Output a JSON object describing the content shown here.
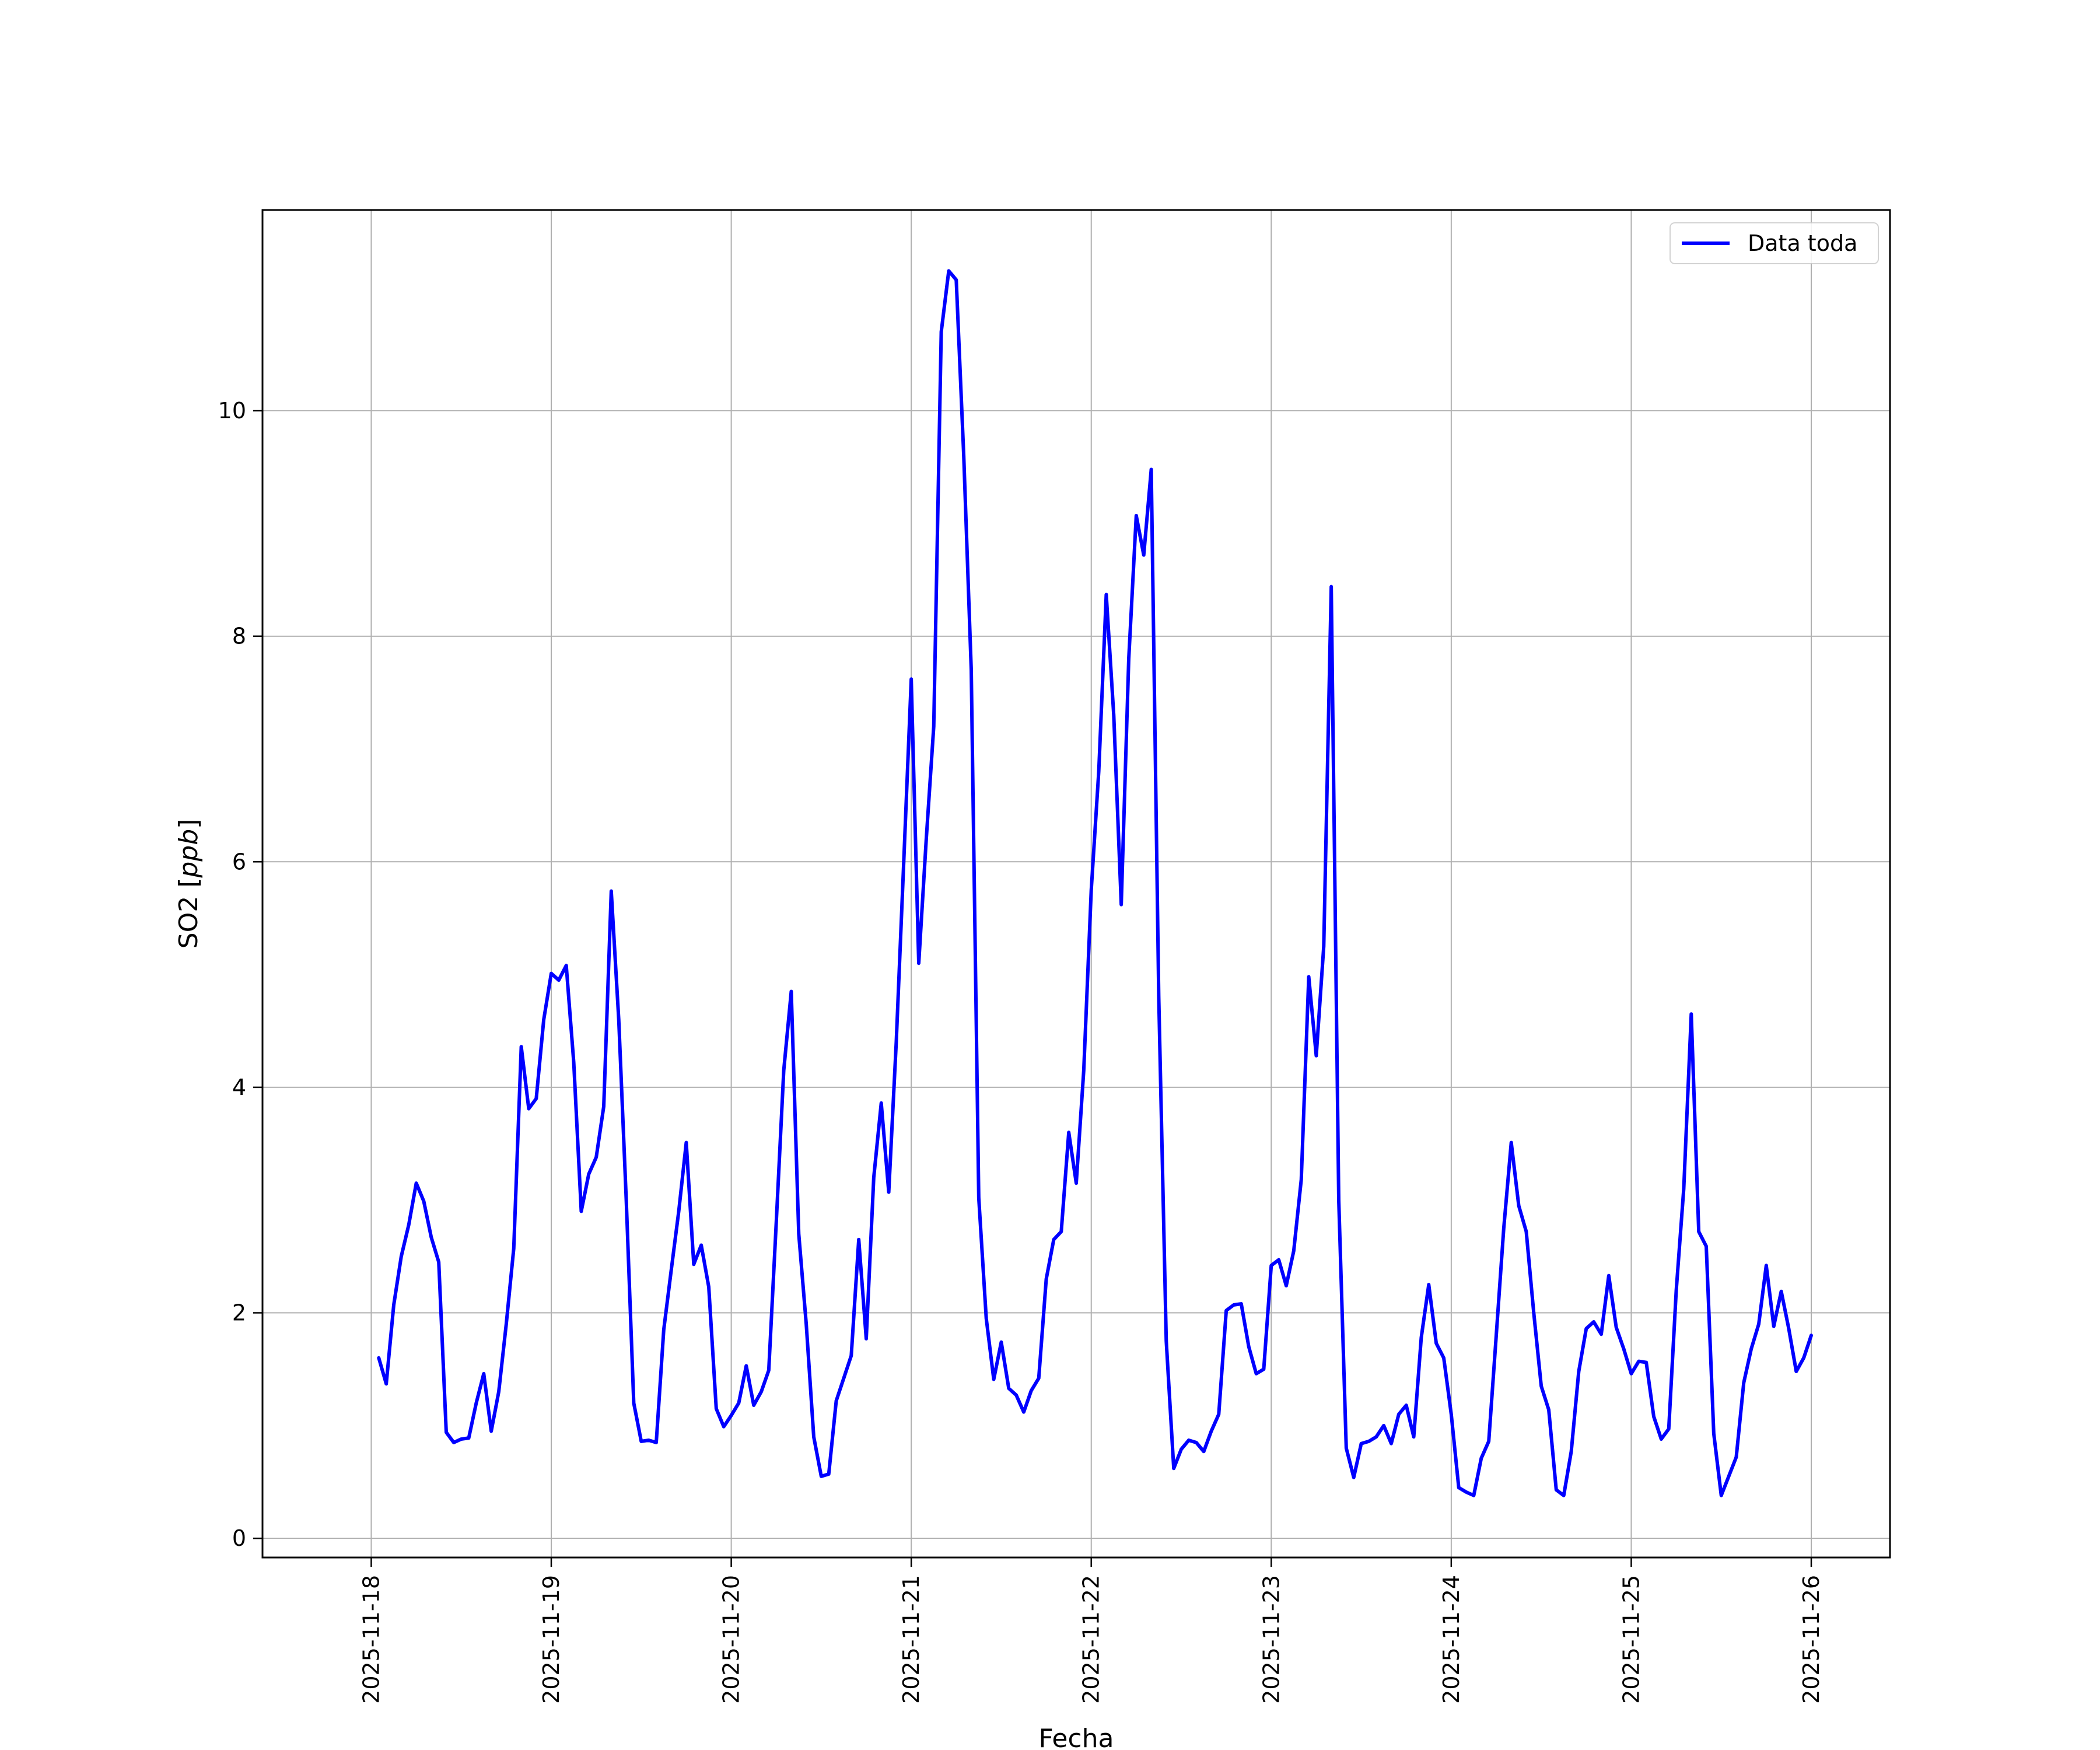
{
  "chart_data": {
    "type": "line",
    "title": "",
    "xlabel": "Fecha",
    "ylabel": "SO2 [ppb]",
    "ylabel_unit": "ppb",
    "x_ticks": [
      "2025-11-18",
      "2025-11-19",
      "2025-11-20",
      "2025-11-21",
      "2025-11-22",
      "2025-11-23",
      "2025-11-24",
      "2025-11-25",
      "2025-11-26"
    ],
    "y_ticks": [
      0,
      2,
      4,
      6,
      8,
      10
    ],
    "xlim": [
      "2025-11-17T09:30",
      "2025-11-26T10:30"
    ],
    "ylim": [
      -0.17,
      11.78
    ],
    "grid": true,
    "legend_position": "top-right",
    "series": [
      {
        "name": "Data toda",
        "color": "#0000ff",
        "points": [
          [
            "2025-11-18T01:00",
            1.6
          ],
          [
            "2025-11-18T02:00",
            1.37
          ],
          [
            "2025-11-18T03:00",
            2.07
          ],
          [
            "2025-11-18T04:00",
            2.5
          ],
          [
            "2025-11-18T05:00",
            2.78
          ],
          [
            "2025-11-18T06:00",
            3.15
          ],
          [
            "2025-11-18T07:00",
            2.99
          ],
          [
            "2025-11-18T08:00",
            2.67
          ],
          [
            "2025-11-18T09:00",
            2.45
          ],
          [
            "2025-11-18T10:00",
            0.94
          ],
          [
            "2025-11-18T11:00",
            0.85
          ],
          [
            "2025-11-18T12:00",
            0.88
          ],
          [
            "2025-11-18T13:00",
            0.89
          ],
          [
            "2025-11-18T14:00",
            1.2
          ],
          [
            "2025-11-18T15:00",
            1.46
          ],
          [
            "2025-11-18T16:00",
            0.95
          ],
          [
            "2025-11-18T17:00",
            1.3
          ],
          [
            "2025-11-18T18:00",
            1.9
          ],
          [
            "2025-11-18T19:00",
            2.57
          ],
          [
            "2025-11-18T20:00",
            4.36
          ],
          [
            "2025-11-18T21:00",
            3.81
          ],
          [
            "2025-11-18T22:00",
            3.9
          ],
          [
            "2025-11-18T23:00",
            4.6
          ],
          [
            "2025-11-19T00:00",
            5.01
          ],
          [
            "2025-11-19T01:00",
            4.95
          ],
          [
            "2025-11-19T02:00",
            5.08
          ],
          [
            "2025-11-19T03:00",
            4.22
          ],
          [
            "2025-11-19T04:00",
            2.9
          ],
          [
            "2025-11-19T05:00",
            3.23
          ],
          [
            "2025-11-19T06:00",
            3.38
          ],
          [
            "2025-11-19T07:00",
            3.83
          ],
          [
            "2025-11-19T08:00",
            5.74
          ],
          [
            "2025-11-19T09:00",
            4.6
          ],
          [
            "2025-11-19T10:00",
            3.0
          ],
          [
            "2025-11-19T11:00",
            1.2
          ],
          [
            "2025-11-19T12:00",
            0.86
          ],
          [
            "2025-11-19T13:00",
            0.87
          ],
          [
            "2025-11-19T14:00",
            0.85
          ],
          [
            "2025-11-19T15:00",
            1.85
          ],
          [
            "2025-11-19T16:00",
            2.38
          ],
          [
            "2025-11-19T17:00",
            2.9
          ],
          [
            "2025-11-19T18:00",
            3.51
          ],
          [
            "2025-11-19T19:00",
            2.43
          ],
          [
            "2025-11-19T20:00",
            2.6
          ],
          [
            "2025-11-19T21:00",
            2.23
          ],
          [
            "2025-11-19T22:00",
            1.15
          ],
          [
            "2025-11-19T23:00",
            0.99
          ],
          [
            "2025-11-20T00:00",
            1.09
          ],
          [
            "2025-11-20T01:00",
            1.2
          ],
          [
            "2025-11-20T02:00",
            1.53
          ],
          [
            "2025-11-20T03:00",
            1.18
          ],
          [
            "2025-11-20T04:00",
            1.3
          ],
          [
            "2025-11-20T05:00",
            1.49
          ],
          [
            "2025-11-20T06:00",
            2.8
          ],
          [
            "2025-11-20T07:00",
            4.15
          ],
          [
            "2025-11-20T08:00",
            4.85
          ],
          [
            "2025-11-20T09:00",
            2.7
          ],
          [
            "2025-11-20T10:00",
            1.9
          ],
          [
            "2025-11-20T11:00",
            0.9
          ],
          [
            "2025-11-20T12:00",
            0.55
          ],
          [
            "2025-11-20T13:00",
            0.57
          ],
          [
            "2025-11-20T14:00",
            1.22
          ],
          [
            "2025-11-20T15:00",
            1.42
          ],
          [
            "2025-11-20T16:00",
            1.62
          ],
          [
            "2025-11-20T17:00",
            2.65
          ],
          [
            "2025-11-20T18:00",
            1.77
          ],
          [
            "2025-11-20T19:00",
            3.2
          ],
          [
            "2025-11-20T20:00",
            3.86
          ],
          [
            "2025-11-20T21:00",
            3.07
          ],
          [
            "2025-11-20T22:00",
            4.4
          ],
          [
            "2025-11-20T23:00",
            6.0
          ],
          [
            "2025-11-21T00:00",
            7.62
          ],
          [
            "2025-11-21T01:00",
            5.1
          ],
          [
            "2025-11-21T02:00",
            6.2
          ],
          [
            "2025-11-21T03:00",
            7.2
          ],
          [
            "2025-11-21T04:00",
            10.7
          ],
          [
            "2025-11-21T05:00",
            11.24
          ],
          [
            "2025-11-21T06:00",
            11.16
          ],
          [
            "2025-11-21T07:00",
            9.6
          ],
          [
            "2025-11-21T08:00",
            7.7
          ],
          [
            "2025-11-21T09:00",
            3.02
          ],
          [
            "2025-11-21T10:00",
            1.95
          ],
          [
            "2025-11-21T11:00",
            1.41
          ],
          [
            "2025-11-21T12:00",
            1.74
          ],
          [
            "2025-11-21T13:00",
            1.33
          ],
          [
            "2025-11-21T14:00",
            1.27
          ],
          [
            "2025-11-21T15:00",
            1.12
          ],
          [
            "2025-11-21T16:00",
            1.31
          ],
          [
            "2025-11-21T17:00",
            1.42
          ],
          [
            "2025-11-21T18:00",
            2.3
          ],
          [
            "2025-11-21T19:00",
            2.65
          ],
          [
            "2025-11-21T20:00",
            2.72
          ],
          [
            "2025-11-21T21:00",
            3.6
          ],
          [
            "2025-11-21T22:00",
            3.15
          ],
          [
            "2025-11-21T23:00",
            4.15
          ],
          [
            "2025-11-22T00:00",
            5.75
          ],
          [
            "2025-11-22T01:00",
            6.8
          ],
          [
            "2025-11-22T02:00",
            8.37
          ],
          [
            "2025-11-22T03:00",
            7.3
          ],
          [
            "2025-11-22T04:00",
            5.62
          ],
          [
            "2025-11-22T05:00",
            7.8
          ],
          [
            "2025-11-22T06:00",
            9.07
          ],
          [
            "2025-11-22T07:00",
            8.72
          ],
          [
            "2025-11-22T08:00",
            9.48
          ],
          [
            "2025-11-22T09:00",
            4.8
          ],
          [
            "2025-11-22T10:00",
            1.75
          ],
          [
            "2025-11-22T11:00",
            0.62
          ],
          [
            "2025-11-22T12:00",
            0.79
          ],
          [
            "2025-11-22T13:00",
            0.87
          ],
          [
            "2025-11-22T14:00",
            0.85
          ],
          [
            "2025-11-22T15:00",
            0.77
          ],
          [
            "2025-11-22T16:00",
            0.95
          ],
          [
            "2025-11-22T17:00",
            1.1
          ],
          [
            "2025-11-22T18:00",
            2.02
          ],
          [
            "2025-11-22T19:00",
            2.07
          ],
          [
            "2025-11-22T20:00",
            2.08
          ],
          [
            "2025-11-22T21:00",
            1.7
          ],
          [
            "2025-11-22T22:00",
            1.46
          ],
          [
            "2025-11-22T23:00",
            1.5
          ],
          [
            "2025-11-23T00:00",
            2.42
          ],
          [
            "2025-11-23T01:00",
            2.47
          ],
          [
            "2025-11-23T02:00",
            2.24
          ],
          [
            "2025-11-23T03:00",
            2.55
          ],
          [
            "2025-11-23T04:00",
            3.18
          ],
          [
            "2025-11-23T05:00",
            4.98
          ],
          [
            "2025-11-23T06:00",
            4.28
          ],
          [
            "2025-11-23T07:00",
            5.25
          ],
          [
            "2025-11-23T08:00",
            8.44
          ],
          [
            "2025-11-23T09:00",
            3.0
          ],
          [
            "2025-11-23T10:00",
            0.8
          ],
          [
            "2025-11-23T11:00",
            0.54
          ],
          [
            "2025-11-23T12:00",
            0.84
          ],
          [
            "2025-11-23T13:00",
            0.86
          ],
          [
            "2025-11-23T14:00",
            0.9
          ],
          [
            "2025-11-23T15:00",
            1.0
          ],
          [
            "2025-11-23T16:00",
            0.84
          ],
          [
            "2025-11-23T17:00",
            1.1
          ],
          [
            "2025-11-23T18:00",
            1.18
          ],
          [
            "2025-11-23T19:00",
            0.9
          ],
          [
            "2025-11-23T20:00",
            1.78
          ],
          [
            "2025-11-23T21:00",
            2.25
          ],
          [
            "2025-11-23T22:00",
            1.73
          ],
          [
            "2025-11-23T23:00",
            1.6
          ],
          [
            "2025-11-24T00:00",
            1.1
          ],
          [
            "2025-11-24T01:00",
            0.45
          ],
          [
            "2025-11-24T02:00",
            0.41
          ],
          [
            "2025-11-24T03:00",
            0.38
          ],
          [
            "2025-11-24T04:00",
            0.71
          ],
          [
            "2025-11-24T05:00",
            0.86
          ],
          [
            "2025-11-24T06:00",
            1.8
          ],
          [
            "2025-11-24T07:00",
            2.75
          ],
          [
            "2025-11-24T08:00",
            3.51
          ],
          [
            "2025-11-24T09:00",
            2.95
          ],
          [
            "2025-11-24T10:00",
            2.72
          ],
          [
            "2025-11-24T11:00",
            2.0
          ],
          [
            "2025-11-24T12:00",
            1.35
          ],
          [
            "2025-11-24T13:00",
            1.14
          ],
          [
            "2025-11-24T14:00",
            0.43
          ],
          [
            "2025-11-24T15:00",
            0.38
          ],
          [
            "2025-11-24T16:00",
            0.77
          ],
          [
            "2025-11-24T17:00",
            1.48
          ],
          [
            "2025-11-24T18:00",
            1.86
          ],
          [
            "2025-11-24T19:00",
            1.92
          ],
          [
            "2025-11-24T20:00",
            1.81
          ],
          [
            "2025-11-24T21:00",
            2.33
          ],
          [
            "2025-11-24T22:00",
            1.87
          ],
          [
            "2025-11-24T23:00",
            1.68
          ],
          [
            "2025-11-25T00:00",
            1.46
          ],
          [
            "2025-11-25T01:00",
            1.57
          ],
          [
            "2025-11-25T02:00",
            1.56
          ],
          [
            "2025-11-25T03:00",
            1.08
          ],
          [
            "2025-11-25T04:00",
            0.88
          ],
          [
            "2025-11-25T05:00",
            0.97
          ],
          [
            "2025-11-25T06:00",
            2.2
          ],
          [
            "2025-11-25T07:00",
            3.1
          ],
          [
            "2025-11-25T08:00",
            4.65
          ],
          [
            "2025-11-25T09:00",
            2.72
          ],
          [
            "2025-11-25T10:00",
            2.59
          ],
          [
            "2025-11-25T11:00",
            0.93
          ],
          [
            "2025-11-25T12:00",
            0.38
          ],
          [
            "2025-11-25T13:00",
            0.55
          ],
          [
            "2025-11-25T14:00",
            0.72
          ],
          [
            "2025-11-25T15:00",
            1.38
          ],
          [
            "2025-11-25T16:00",
            1.68
          ],
          [
            "2025-11-25T17:00",
            1.9
          ],
          [
            "2025-11-25T18:00",
            2.42
          ],
          [
            "2025-11-25T19:00",
            1.88
          ],
          [
            "2025-11-25T20:00",
            2.19
          ],
          [
            "2025-11-25T21:00",
            1.86
          ],
          [
            "2025-11-25T22:00",
            1.48
          ],
          [
            "2025-11-25T23:00",
            1.6
          ],
          [
            "2025-11-26T00:00",
            1.8
          ]
        ]
      }
    ]
  }
}
